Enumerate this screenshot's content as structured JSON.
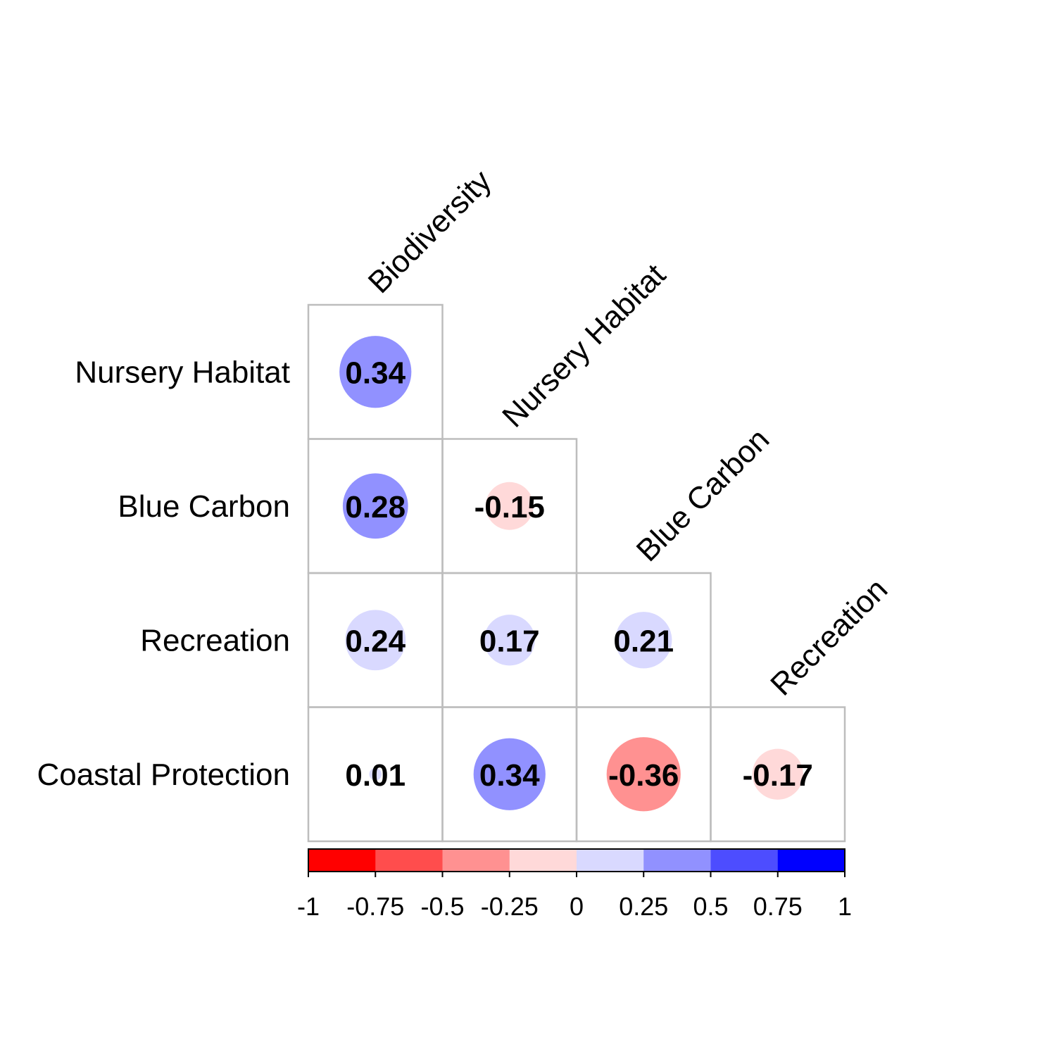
{
  "chart_data": {
    "type": "heatmap",
    "subtype": "correlation-circles-lower-triangle",
    "columns": [
      "Biodiversity",
      "Nursery Habitat",
      "Blue Carbon",
      "Recreation"
    ],
    "rows": [
      "Nursery Habitat",
      "Blue Carbon",
      "Recreation",
      "Coastal Protection"
    ],
    "values": [
      [
        0.34,
        null,
        null,
        null
      ],
      [
        0.28,
        -0.15,
        null,
        null
      ],
      [
        0.24,
        0.17,
        0.21,
        null
      ],
      [
        0.01,
        0.34,
        -0.36,
        -0.17
      ]
    ],
    "value_labels": [
      [
        "0.34",
        "",
        "",
        ""
      ],
      [
        "0.28",
        "-0.15",
        "",
        ""
      ],
      [
        "0.24",
        "0.17",
        "0.21",
        ""
      ],
      [
        "0.01",
        "0.34",
        "-0.36",
        "-0.17"
      ]
    ],
    "colorbar": {
      "range": [
        -1,
        1
      ],
      "ticks": [
        "-1",
        "-0.75",
        "-0.5",
        "-0.25",
        "0",
        "0.25",
        "0.5",
        "0.75",
        "1"
      ],
      "bins": [
        "#ff0000",
        "#ff4d4d",
        "#ff9191",
        "#ffd9d9",
        "#d9d9ff",
        "#9191ff",
        "#4d4dff",
        "#0000ff"
      ]
    },
    "legend": "bottom",
    "grid": true
  }
}
